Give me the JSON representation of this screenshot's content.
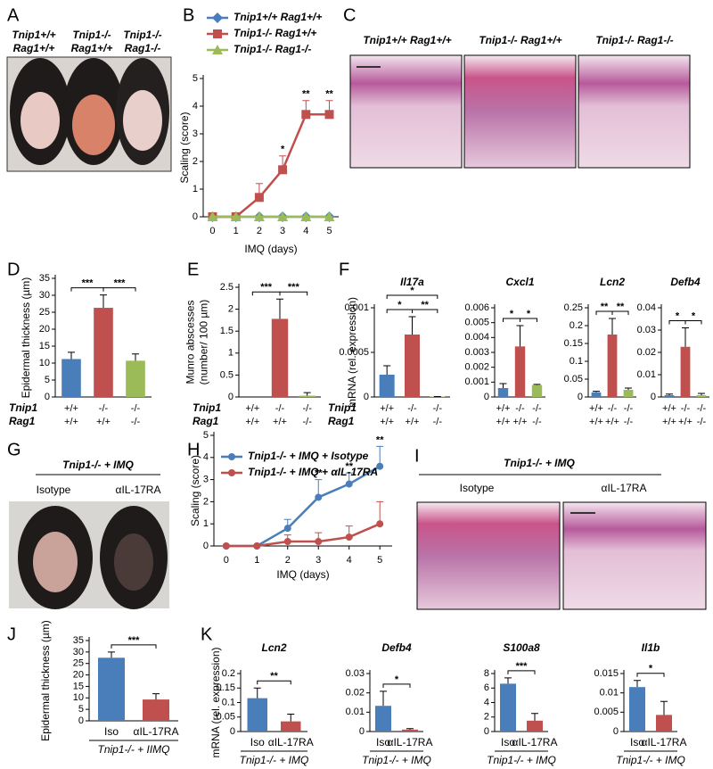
{
  "panel_letters": [
    "A",
    "B",
    "C",
    "D",
    "E",
    "F",
    "G",
    "H",
    "I",
    "J",
    "K"
  ],
  "photo_panels": {
    "A": {
      "labels": [
        [
          "Tnip1+/+",
          "Rag1+/+"
        ],
        [
          "Tnip1-/-",
          "Rag1+/+"
        ],
        [
          "Tnip1-/-",
          "Rag1-/-"
        ]
      ]
    },
    "C": {
      "labels": [
        "Tnip1+/+ Rag1+/+",
        "Tnip1-/- Rag1+/+",
        "Tnip1-/- Rag1-/-"
      ]
    },
    "G": {
      "title": "Tnip1-/- + IMQ",
      "labels": [
        "Isotype",
        "αIL-17RA"
      ]
    },
    "I": {
      "title": "Tnip1-/- + IMQ",
      "labels": [
        "Isotype",
        "αIL-17RA"
      ]
    }
  },
  "chart_data": [
    {
      "type": "line",
      "ylabel": "Scaling (score)",
      "xlabel": "IMQ (days)",
      "x": [
        0,
        1,
        2,
        3,
        4,
        5
      ],
      "xlim": [
        -0.4,
        5.4
      ],
      "xticks": [
        0,
        1,
        2,
        3,
        4,
        5
      ],
      "ylim": [
        0,
        5
      ],
      "yticks": [
        0,
        1,
        2,
        3,
        4,
        5
      ],
      "series": [
        {
          "name": "Tnip1+/+ Rag1+/+",
          "color": "#4a7ebb",
          "marker": "diamond",
          "values": [
            0,
            0,
            0,
            0,
            0,
            0
          ],
          "errors": [
            0,
            0,
            0,
            0,
            0,
            0
          ]
        },
        {
          "name": "Tnip1-/- Rag1+/+",
          "color": "#c0504d",
          "marker": "square",
          "values": [
            0,
            0,
            0.7,
            1.7,
            3.7,
            3.7
          ],
          "errors": [
            0,
            0,
            0.5,
            0.5,
            0.5,
            0.5
          ]
        },
        {
          "name": "Tnip1-/- Rag1-/-",
          "color": "#9bbb59",
          "marker": "triangle",
          "values": [
            0,
            0,
            0,
            0,
            0,
            0
          ],
          "errors": [
            0,
            0,
            0,
            0,
            0,
            0
          ]
        }
      ],
      "annotations": [
        {
          "x": 3,
          "label": "*"
        },
        {
          "x": 4,
          "label": "**"
        },
        {
          "x": 5,
          "label": "**"
        }
      ]
    },
    {
      "type": "bar",
      "ylabel": "Epidermal thickness (µm)",
      "colors": [
        "#4a7ebb",
        "#c0504d",
        "#9bbb59"
      ],
      "values": [
        11.2,
        26.3,
        10.7
      ],
      "errors": [
        2,
        3.8,
        2
      ],
      "ylim": [
        0,
        35
      ],
      "yticks": [
        0,
        5,
        10,
        15,
        20,
        25,
        30,
        35
      ],
      "row_labels": [
        "Tnip1",
        "Rag1"
      ],
      "rows": [
        [
          "+/+",
          "-/-",
          "-/-"
        ],
        [
          "+/+",
          "+/+",
          "-/-"
        ]
      ],
      "significance": [
        {
          "bars": [
            0,
            1
          ],
          "label": "***"
        },
        {
          "bars": [
            1,
            2
          ],
          "label": "***"
        }
      ]
    },
    {
      "type": "bar",
      "ylabel": [
        "Munro abscesses",
        "(number/ 100 µm)"
      ],
      "colors": [
        "#4a7ebb",
        "#c0504d",
        "#9bbb59"
      ],
      "values": [
        0,
        1.78,
        0.03
      ],
      "errors": [
        0,
        0.45,
        0.07
      ],
      "ylim": [
        0,
        2.5
      ],
      "yticks": [
        0,
        0.5,
        1,
        1.5,
        2,
        2.5
      ],
      "row_labels": [
        "Tnip1",
        "Rag1"
      ],
      "rows": [
        [
          "+/+",
          "-/-",
          "-/-"
        ],
        [
          "+/+",
          "+/+",
          "-/-"
        ]
      ],
      "significance": [
        {
          "bars": [
            0,
            1
          ],
          "label": "***"
        },
        {
          "bars": [
            1,
            2
          ],
          "label": "***"
        }
      ]
    },
    {
      "type": "bar",
      "title": "Il17a",
      "ylabel": "mRNA (rel. expression)",
      "colors": [
        "#4a7ebb",
        "#c0504d",
        "#9bbb59"
      ],
      "values": [
        0.00025,
        0.0007,
        5e-06
      ],
      "errors": [
        0.0001,
        0.0002,
        0
      ],
      "ylim": [
        0,
        0.001
      ],
      "yticks": [
        0,
        0.0005,
        0.001
      ],
      "row_labels": [
        "Tnip1",
        "Rag1"
      ],
      "rows": [
        [
          "+/+",
          "-/-",
          "-/-"
        ],
        [
          "+/+",
          "+/+",
          "-/-"
        ]
      ],
      "significance": [
        {
          "bars": [
            0,
            1
          ],
          "label": "*"
        },
        {
          "bars": [
            1,
            2
          ],
          "label": "**"
        },
        {
          "bars": [
            0,
            2
          ],
          "label": "*"
        }
      ]
    },
    {
      "type": "bar",
      "title": "Cxcl1",
      "colors": [
        "#4a7ebb",
        "#c0504d",
        "#9bbb59"
      ],
      "values": [
        0.0006,
        0.0034,
        0.0008
      ],
      "errors": [
        0.0003,
        0.0014,
        5e-05
      ],
      "ylim": [
        0,
        0.006
      ],
      "yticks": [
        0,
        0.001,
        0.002,
        0.003,
        0.004,
        0.005,
        0.006
      ],
      "rows": [
        [
          "+/+",
          "-/-",
          "-/-"
        ],
        [
          "+/+",
          "+/+",
          "-/-"
        ]
      ],
      "significance": [
        {
          "bars": [
            0,
            1
          ],
          "label": "*"
        },
        {
          "bars": [
            1,
            2
          ],
          "label": "*"
        }
      ]
    },
    {
      "type": "bar",
      "title": "Lcn2",
      "colors": [
        "#4a7ebb",
        "#c0504d",
        "#9bbb59"
      ],
      "values": [
        0.013,
        0.175,
        0.02
      ],
      "errors": [
        0.003,
        0.045,
        0.005
      ],
      "ylim": [
        0,
        0.25
      ],
      "yticks": [
        0,
        0.05,
        0.1,
        0.15,
        0.2,
        0.25
      ],
      "rows": [
        [
          "+/+",
          "-/-",
          "-/-"
        ],
        [
          "+/+",
          "+/+",
          "-/-"
        ]
      ],
      "significance": [
        {
          "bars": [
            0,
            1
          ],
          "label": "**"
        },
        {
          "bars": [
            1,
            2
          ],
          "label": "**"
        }
      ]
    },
    {
      "type": "bar",
      "title": "Defb4",
      "colors": [
        "#4a7ebb",
        "#c0504d",
        "#9bbb59"
      ],
      "values": [
        0.0008,
        0.0225,
        0.0008
      ],
      "errors": [
        0.0005,
        0.0085,
        0.0008
      ],
      "ylim": [
        0,
        0.04
      ],
      "yticks": [
        0,
        0.01,
        0.02,
        0.03,
        0.04
      ],
      "rows": [
        [
          "+/+",
          "-/-",
          "-/-"
        ],
        [
          "+/+",
          "+/+",
          "-/-"
        ]
      ],
      "significance": [
        {
          "bars": [
            0,
            1
          ],
          "label": "*"
        },
        {
          "bars": [
            1,
            2
          ],
          "label": "*"
        }
      ]
    },
    {
      "type": "line",
      "ylabel": "Scaling (score)",
      "xlabel": "IMQ (days)",
      "x": [
        0,
        1,
        2,
        3,
        4,
        5
      ],
      "xlim": [
        -0.4,
        5.4
      ],
      "xticks": [
        0,
        1,
        2,
        3,
        4,
        5
      ],
      "ylim": [
        0,
        5
      ],
      "yticks": [
        0,
        1,
        2,
        3,
        4,
        5
      ],
      "series": [
        {
          "name": "Tnip1-/- + IMQ + Isotype",
          "color": "#4a7ebb",
          "marker": "circle",
          "values": [
            0,
            0,
            0.8,
            2.2,
            2.8,
            3.6
          ],
          "errors": [
            0,
            0,
            0.4,
            0.8,
            0.5,
            0.9
          ]
        },
        {
          "name": "Tnip1-/- + IMQ + αIL-17RA",
          "color": "#c0504d",
          "marker": "circle",
          "values": [
            0,
            0,
            0.2,
            0.2,
            0.4,
            1
          ],
          "errors": [
            0,
            0,
            0.3,
            0.4,
            0.5,
            1
          ]
        }
      ],
      "annotations": [
        {
          "x": 3,
          "label": "**"
        },
        {
          "x": 4,
          "label": "**"
        },
        {
          "x": 5,
          "label": "**"
        }
      ]
    },
    {
      "type": "bar",
      "ylabel": "Epidermal thickness (µm)",
      "colors": [
        "#4a7ebb",
        "#c0504d"
      ],
      "categories": [
        "Iso",
        "αIL-17RA"
      ],
      "caption": "Tnip1-/- + IIMQ",
      "values": [
        27.5,
        9.3
      ],
      "errors": [
        2.5,
        2.5
      ],
      "ylim": [
        0,
        35
      ],
      "yticks": [
        0,
        5,
        10,
        15,
        20,
        25,
        30,
        35
      ],
      "significance": [
        {
          "bars": [
            0,
            1
          ],
          "label": "***"
        }
      ]
    },
    {
      "type": "bar",
      "title": "Lcn2",
      "ylabel": "mRNA (rel. expression)",
      "colors": [
        "#4a7ebb",
        "#c0504d"
      ],
      "categories": [
        "Iso",
        "αIL-17RA"
      ],
      "caption": "Tnip1-/- + IMQ",
      "values": [
        0.115,
        0.035
      ],
      "errors": [
        0.035,
        0.025
      ],
      "ylim": [
        0,
        0.2
      ],
      "yticks": [
        0,
        0.05,
        0.1,
        0.15,
        0.2
      ],
      "significance": [
        {
          "bars": [
            0,
            1
          ],
          "label": "**"
        }
      ]
    },
    {
      "type": "bar",
      "title": "Defb4",
      "colors": [
        "#4a7ebb",
        "#c0504d"
      ],
      "categories": [
        "Iso",
        "αIL-17RA"
      ],
      "caption": "Tnip1-/- + IMQ",
      "values": [
        0.0133,
        0.001
      ],
      "errors": [
        0.0075,
        0.0005
      ],
      "ylim": [
        0,
        0.03
      ],
      "yticks": [
        0,
        0.01,
        0.02,
        0.03
      ],
      "significance": [
        {
          "bars": [
            0,
            1
          ],
          "label": "*"
        }
      ]
    },
    {
      "type": "bar",
      "title": "S100a8",
      "colors": [
        "#4a7ebb",
        "#c0504d"
      ],
      "categories": [
        "Iso",
        "αIL-17RA"
      ],
      "caption": "Tnip1-/- + IMQ",
      "values": [
        6.6,
        1.5
      ],
      "errors": [
        0.8,
        1
      ],
      "ylim": [
        0,
        8
      ],
      "yticks": [
        0,
        2,
        4,
        6,
        8
      ],
      "significance": [
        {
          "bars": [
            0,
            1
          ],
          "label": "***"
        }
      ]
    },
    {
      "type": "bar",
      "title": "Il1b",
      "colors": [
        "#4a7ebb",
        "#c0504d"
      ],
      "categories": [
        "Iso",
        "αIL-17RA"
      ],
      "caption": "Tnip1-/- + IMQ",
      "values": [
        0.0115,
        0.0043
      ],
      "errors": [
        0.0017,
        0.0035
      ],
      "ylim": [
        0,
        0.015
      ],
      "yticks": [
        0,
        0.005,
        0.01,
        0.015
      ],
      "significance": [
        {
          "bars": [
            0,
            1
          ],
          "label": "*"
        }
      ]
    }
  ]
}
